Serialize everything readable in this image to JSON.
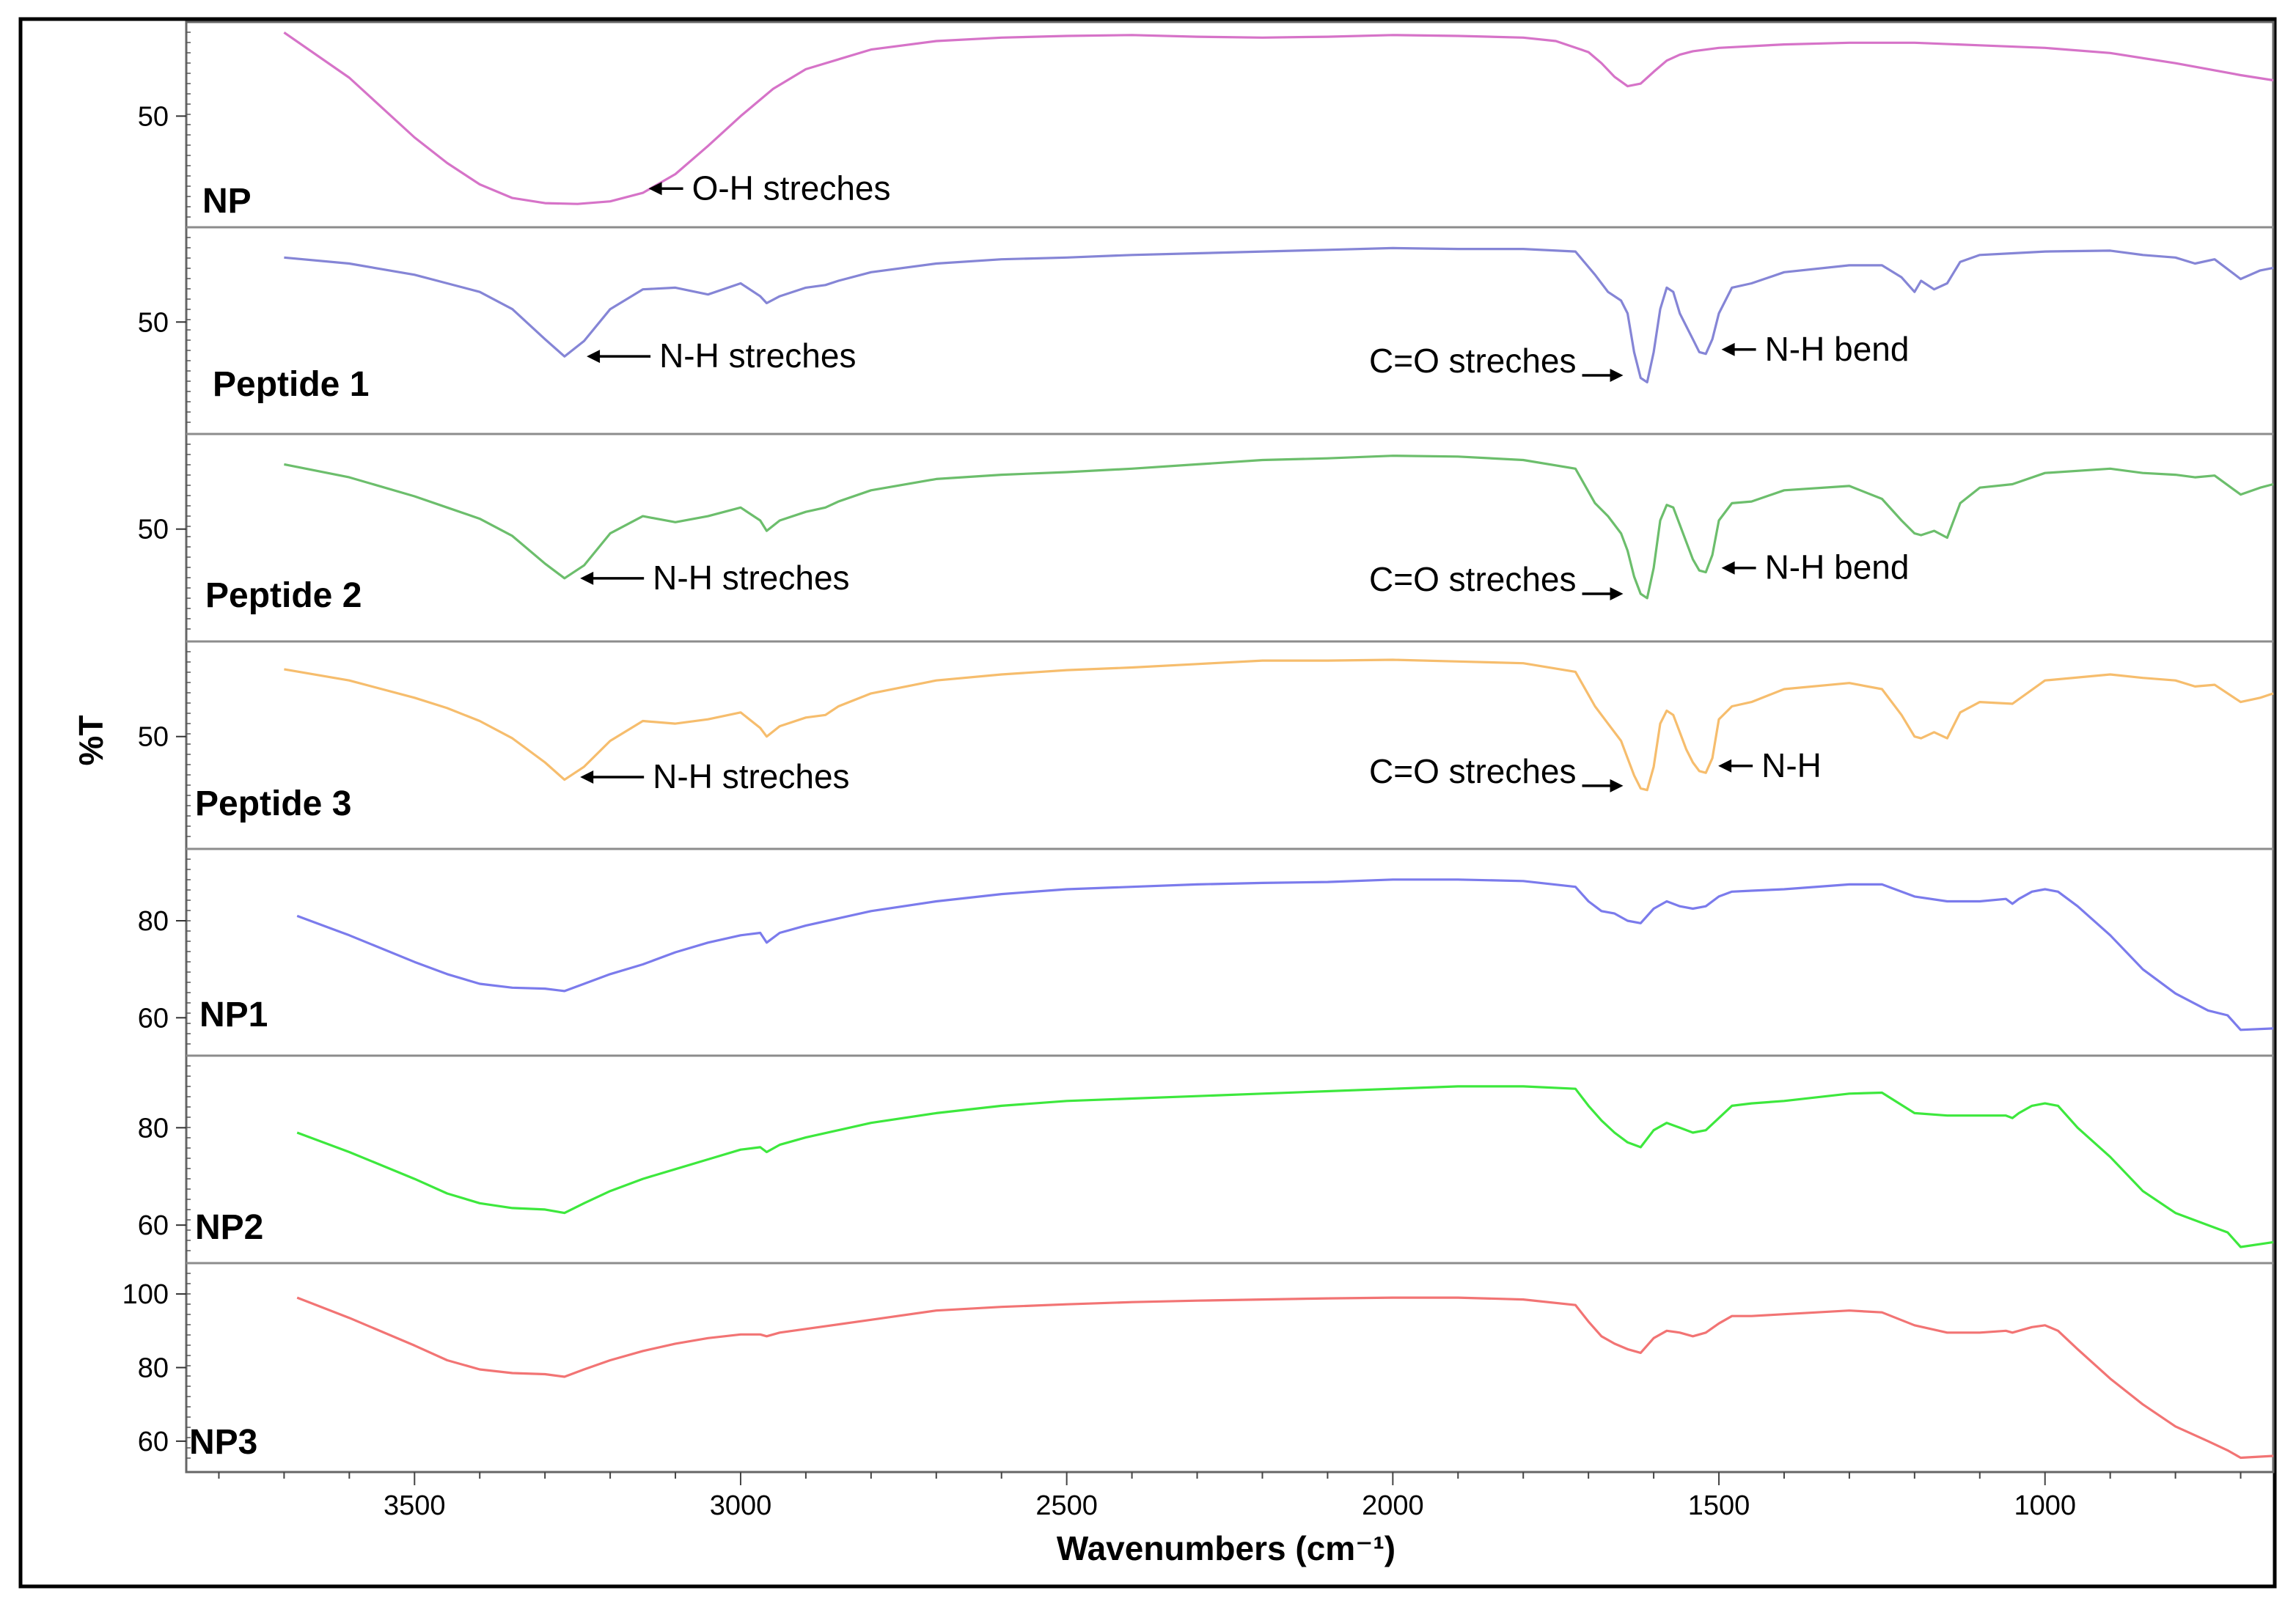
{
  "chart_data": {
    "type": "line",
    "title": "",
    "xlabel": "Wavenumbers (cm⁻¹)",
    "ylabel": "%T",
    "xlim": [
      3850,
      650
    ],
    "xticks": [
      3500,
      3000,
      2500,
      2000,
      1500,
      1000
    ],
    "xtick_labels": [
      "3500",
      "3000",
      "2500",
      "2000",
      "1500",
      "1000"
    ],
    "grid": false,
    "legend": "none",
    "panels": [
      {
        "name": "NP",
        "label": "NP",
        "color": "#d673c8",
        "ylim": [
          38,
          60
        ],
        "yticks": [
          50
        ],
        "x": [
          3700,
          3600,
          3500,
          3450,
          3400,
          3350,
          3300,
          3250,
          3200,
          3150,
          3100,
          3050,
          3000,
          2950,
          2900,
          2800,
          2700,
          2600,
          2500,
          2400,
          2300,
          2200,
          2100,
          2000,
          1900,
          1800,
          1750,
          1700,
          1680,
          1660,
          1640,
          1620,
          1600,
          1580,
          1560,
          1540,
          1500,
          1400,
          1300,
          1200,
          1100,
          1000,
          900,
          800,
          700,
          650
        ],
        "y": [
          59.8,
          54.5,
          47.5,
          44.5,
          42.0,
          40.4,
          39.8,
          39.7,
          40.0,
          41.0,
          43.2,
          46.5,
          50.0,
          53.2,
          55.5,
          57.8,
          58.8,
          59.2,
          59.4,
          59.5,
          59.3,
          59.2,
          59.3,
          59.5,
          59.4,
          59.2,
          58.8,
          57.5,
          56.2,
          54.6,
          53.5,
          53.8,
          55.2,
          56.5,
          57.2,
          57.6,
          58.0,
          58.4,
          58.6,
          58.6,
          58.3,
          58.0,
          57.4,
          56.2,
          54.8,
          54.2
        ],
        "annotations": [
          {
            "text": "O-H streches",
            "x": 3150,
            "y": 41.5
          }
        ]
      },
      {
        "name": "Peptide 1",
        "label": "Peptide 1",
        "color": "#8585d6",
        "ylim": [
          38,
          60
        ],
        "yticks": [
          50
        ],
        "x": [
          3700,
          3600,
          3500,
          3450,
          3400,
          3350,
          3300,
          3270,
          3240,
          3200,
          3150,
          3100,
          3050,
          3000,
          2970,
          2960,
          2940,
          2900,
          2870,
          2850,
          2800,
          2700,
          2600,
          2500,
          2400,
          2300,
          2200,
          2100,
          2000,
          1900,
          1800,
          1720,
          1690,
          1670,
          1650,
          1640,
          1630,
          1620,
          1610,
          1600,
          1590,
          1580,
          1570,
          1560,
          1550,
          1540,
          1530,
          1520,
          1510,
          1500,
          1480,
          1450,
          1400,
          1300,
          1250,
          1220,
          1200,
          1190,
          1170,
          1150,
          1130,
          1100,
          1050,
          1000,
          900,
          850,
          800,
          770,
          740,
          700,
          670,
          650
        ],
        "y": [
          57.5,
          56.8,
          55.5,
          54.5,
          53.5,
          51.5,
          48.0,
          46.0,
          47.8,
          51.5,
          53.8,
          54.0,
          53.2,
          54.5,
          53.0,
          52.2,
          53.0,
          54.0,
          54.3,
          54.8,
          55.8,
          56.8,
          57.3,
          57.5,
          57.8,
          58.0,
          58.2,
          58.4,
          58.6,
          58.5,
          58.5,
          58.2,
          55.5,
          53.5,
          52.5,
          51.0,
          46.5,
          43.5,
          43.0,
          46.5,
          51.5,
          54.0,
          53.5,
          51.0,
          49.5,
          48.0,
          46.5,
          46.3,
          48.0,
          51.0,
          54.0,
          54.5,
          55.8,
          56.6,
          56.6,
          55.2,
          53.5,
          54.8,
          53.8,
          54.5,
          57.0,
          57.8,
          58.0,
          58.2,
          58.3,
          57.8,
          57.5,
          56.8,
          57.3,
          55.0,
          56.0,
          56.3
        ],
        "annotations": [
          {
            "text": "N-H streches",
            "x": 3245,
            "y": 46.0
          },
          {
            "text": "N-H bend",
            "x": 1505,
            "y": 46.8
          },
          {
            "text": "C=O streches",
            "x": 1640,
            "y": 43.8
          }
        ]
      },
      {
        "name": "Peptide 2",
        "label": "Peptide 2",
        "color": "#6cbe6c",
        "ylim": [
          38,
          60
        ],
        "yticks": [
          50
        ],
        "x": [
          3700,
          3600,
          3500,
          3450,
          3400,
          3350,
          3300,
          3270,
          3240,
          3200,
          3150,
          3100,
          3050,
          3000,
          2970,
          2960,
          2940,
          2900,
          2870,
          2850,
          2800,
          2700,
          2600,
          2500,
          2400,
          2300,
          2200,
          2100,
          2000,
          1900,
          1800,
          1720,
          1690,
          1670,
          1650,
          1640,
          1630,
          1620,
          1610,
          1600,
          1590,
          1580,
          1570,
          1560,
          1550,
          1540,
          1530,
          1520,
          1510,
          1500,
          1480,
          1450,
          1400,
          1300,
          1250,
          1220,
          1200,
          1190,
          1170,
          1150,
          1130,
          1100,
          1050,
          1000,
          900,
          850,
          800,
          770,
          740,
          700,
          670,
          650
        ],
        "y": [
          57.5,
          56.0,
          53.8,
          52.5,
          51.2,
          49.2,
          46.0,
          44.3,
          45.8,
          49.5,
          51.5,
          50.8,
          51.5,
          52.5,
          51.0,
          49.8,
          51.0,
          52.0,
          52.5,
          53.2,
          54.5,
          55.8,
          56.3,
          56.6,
          57.0,
          57.5,
          58.0,
          58.2,
          58.5,
          58.4,
          58.0,
          57.0,
          53.0,
          51.5,
          49.5,
          47.5,
          44.5,
          42.5,
          42.0,
          45.5,
          51.0,
          52.8,
          52.5,
          50.5,
          48.5,
          46.5,
          45.2,
          45.0,
          47.0,
          51.0,
          53.0,
          53.2,
          54.5,
          55.0,
          53.5,
          51.0,
          49.5,
          49.3,
          49.8,
          49.0,
          53.0,
          54.8,
          55.2,
          56.5,
          57.0,
          56.5,
          56.3,
          56.0,
          56.2,
          54.0,
          54.8,
          55.2
        ],
        "annotations": [
          {
            "text": "N-H streches",
            "x": 3255,
            "y": 44.3
          },
          {
            "text": "N-H bend",
            "x": 1505,
            "y": 45.5
          },
          {
            "text": "C=O streches",
            "x": 1640,
            "y": 42.5
          }
        ]
      },
      {
        "name": "Peptide 3",
        "label": "Peptide 3",
        "color": "#f6bd6d",
        "ylim": [
          38,
          60
        ],
        "yticks": [
          50
        ],
        "x": [
          3700,
          3600,
          3500,
          3450,
          3400,
          3350,
          3300,
          3270,
          3240,
          3200,
          3150,
          3100,
          3050,
          3000,
          2970,
          2960,
          2940,
          2900,
          2870,
          2850,
          2800,
          2700,
          2600,
          2500,
          2400,
          2300,
          2200,
          2100,
          2000,
          1900,
          1800,
          1720,
          1690,
          1670,
          1650,
          1640,
          1630,
          1620,
          1610,
          1600,
          1590,
          1580,
          1570,
          1560,
          1550,
          1540,
          1530,
          1520,
          1510,
          1500,
          1480,
          1450,
          1400,
          1300,
          1250,
          1220,
          1200,
          1190,
          1170,
          1150,
          1130,
          1100,
          1050,
          1000,
          900,
          850,
          800,
          770,
          740,
          700,
          670,
          650
        ],
        "y": [
          57.8,
          56.5,
          54.5,
          53.3,
          51.8,
          49.8,
          47.0,
          45.0,
          46.5,
          49.5,
          51.8,
          51.5,
          52.0,
          52.8,
          51.0,
          50.0,
          51.2,
          52.2,
          52.5,
          53.5,
          55.0,
          56.5,
          57.2,
          57.7,
          58.0,
          58.4,
          58.8,
          58.8,
          58.9,
          58.7,
          58.5,
          57.5,
          53.5,
          51.5,
          49.5,
          47.5,
          45.5,
          44.0,
          43.8,
          46.5,
          51.5,
          53.0,
          52.5,
          50.5,
          48.5,
          47.0,
          46.0,
          45.8,
          47.5,
          52.0,
          53.5,
          54.0,
          55.5,
          56.2,
          55.5,
          52.5,
          50.0,
          49.8,
          50.5,
          49.8,
          52.8,
          54.0,
          53.8,
          56.5,
          57.2,
          56.8,
          56.5,
          55.8,
          56.0,
          54.0,
          54.5,
          55.0
        ],
        "annotations": [
          {
            "text": "N-H streches",
            "x": 3255,
            "y": 45.3
          },
          {
            "text": "N-H",
            "x": 1510,
            "y": 46.6
          },
          {
            "text": "C=O streches",
            "x": 1640,
            "y": 44.3
          }
        ]
      },
      {
        "name": "NP1",
        "label": "NP1",
        "color": "#7b7bec",
        "ylim": [
          54,
          93
        ],
        "yticks": [
          60,
          80
        ],
        "x": [
          3680,
          3600,
          3500,
          3450,
          3400,
          3350,
          3300,
          3270,
          3240,
          3200,
          3150,
          3100,
          3050,
          3000,
          2970,
          2960,
          2940,
          2900,
          2800,
          2700,
          2600,
          2500,
          2400,
          2300,
          2200,
          2100,
          2000,
          1900,
          1800,
          1720,
          1700,
          1680,
          1660,
          1640,
          1620,
          1600,
          1580,
          1560,
          1540,
          1520,
          1500,
          1480,
          1450,
          1400,
          1300,
          1250,
          1200,
          1150,
          1100,
          1060,
          1050,
          1040,
          1020,
          1000,
          980,
          950,
          900,
          850,
          800,
          750,
          720,
          700,
          650
        ],
        "y": [
          81.0,
          77.0,
          71.5,
          69.0,
          67.0,
          66.2,
          66.0,
          65.5,
          67.0,
          69.0,
          71.0,
          73.5,
          75.5,
          77.0,
          77.5,
          75.5,
          77.5,
          79.0,
          82.0,
          84.0,
          85.5,
          86.5,
          87.0,
          87.5,
          87.8,
          88.0,
          88.5,
          88.5,
          88.2,
          87.0,
          84.0,
          82.0,
          81.5,
          80.0,
          79.5,
          82.5,
          84.0,
          83.0,
          82.5,
          83.0,
          85.0,
          86.0,
          86.2,
          86.5,
          87.5,
          87.5,
          85.0,
          84.0,
          84.0,
          84.5,
          83.5,
          84.5,
          86.0,
          86.5,
          86.0,
          83.0,
          77.0,
          70.0,
          65.0,
          61.5,
          60.5,
          57.5,
          57.8
        ],
        "annotations": []
      },
      {
        "name": "NP2",
        "label": "NP2",
        "color": "#3de83d",
        "ylim": [
          54,
          93
        ],
        "yticks": [
          60,
          80
        ],
        "x": [
          3680,
          3600,
          3500,
          3450,
          3400,
          3350,
          3300,
          3270,
          3240,
          3200,
          3150,
          3100,
          3050,
          3000,
          2970,
          2960,
          2940,
          2900,
          2800,
          2700,
          2600,
          2500,
          2400,
          2300,
          2200,
          2100,
          2000,
          1900,
          1800,
          1720,
          1700,
          1680,
          1660,
          1640,
          1620,
          1600,
          1580,
          1560,
          1540,
          1520,
          1500,
          1480,
          1450,
          1400,
          1300,
          1250,
          1200,
          1150,
          1100,
          1060,
          1050,
          1040,
          1020,
          1000,
          980,
          950,
          900,
          850,
          800,
          750,
          720,
          700,
          650
        ],
        "y": [
          79.0,
          75.0,
          69.5,
          66.5,
          64.5,
          63.5,
          63.2,
          62.5,
          64.5,
          67.0,
          69.5,
          71.5,
          73.5,
          75.5,
          76.0,
          75.0,
          76.5,
          78.0,
          81.0,
          83.0,
          84.5,
          85.5,
          86.0,
          86.5,
          87.0,
          87.5,
          88.0,
          88.5,
          88.5,
          88.0,
          84.5,
          81.5,
          79.0,
          77.0,
          76.0,
          79.5,
          81.0,
          80.0,
          79.0,
          79.5,
          82.0,
          84.5,
          85.0,
          85.5,
          87.0,
          87.2,
          83.0,
          82.5,
          82.5,
          82.5,
          82.0,
          83.0,
          84.5,
          85.0,
          84.5,
          80.0,
          74.0,
          67.0,
          62.5,
          60.0,
          58.5,
          55.5,
          56.5
        ],
        "annotations": []
      },
      {
        "name": "NP3",
        "label": "NP3",
        "color": "#f27474",
        "ylim": [
          54,
          106
        ],
        "yticks": [
          60,
          80,
          100
        ],
        "x": [
          3680,
          3600,
          3500,
          3450,
          3400,
          3350,
          3300,
          3270,
          3240,
          3200,
          3150,
          3100,
          3050,
          3000,
          2970,
          2960,
          2940,
          2900,
          2800,
          2700,
          2600,
          2500,
          2400,
          2300,
          2200,
          2100,
          2000,
          1900,
          1800,
          1720,
          1700,
          1680,
          1660,
          1640,
          1620,
          1600,
          1580,
          1560,
          1540,
          1520,
          1500,
          1480,
          1450,
          1400,
          1300,
          1250,
          1200,
          1150,
          1100,
          1060,
          1050,
          1040,
          1020,
          1000,
          980,
          950,
          900,
          850,
          800,
          750,
          720,
          700,
          650
        ],
        "y": [
          99.0,
          93.5,
          86.0,
          82.0,
          79.5,
          78.5,
          78.2,
          77.5,
          79.5,
          82.0,
          84.5,
          86.5,
          88.0,
          89.0,
          89.0,
          88.5,
          89.5,
          90.5,
          93.0,
          95.5,
          96.5,
          97.2,
          97.8,
          98.2,
          98.5,
          98.8,
          99.0,
          99.0,
          98.5,
          97.0,
          92.5,
          88.5,
          86.5,
          85.0,
          84.0,
          88.0,
          90.0,
          89.5,
          88.5,
          89.5,
          92.0,
          94.0,
          94.0,
          94.5,
          95.5,
          95.0,
          91.5,
          89.5,
          89.5,
          90.0,
          89.5,
          90.0,
          91.0,
          91.5,
          90.0,
          85.0,
          77.0,
          70.0,
          64.0,
          60.0,
          57.5,
          55.5,
          56.0
        ],
        "annotations": []
      }
    ]
  }
}
